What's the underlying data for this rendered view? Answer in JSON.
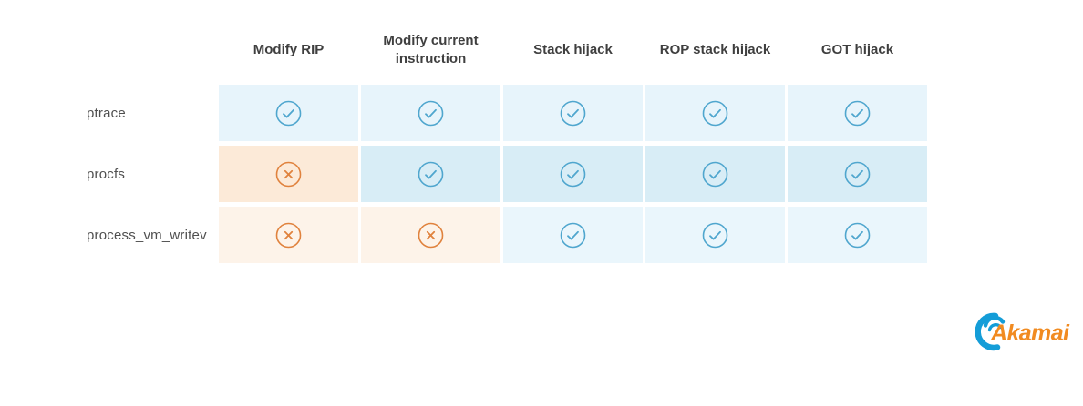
{
  "matrix": {
    "columns": [
      "Modify RIP",
      "Modify current instruction",
      "Stack hijack",
      "ROP stack hijack",
      "GOT hijack"
    ],
    "rows": [
      {
        "label": "ptrace",
        "cells": [
          "check",
          "check",
          "check",
          "check",
          "check"
        ]
      },
      {
        "label": "procfs",
        "cells": [
          "cross",
          "check",
          "check",
          "check",
          "check"
        ]
      },
      {
        "label": "process_vm_writev",
        "cells": [
          "cross",
          "cross",
          "check",
          "check",
          "check"
        ]
      }
    ]
  },
  "colors": {
    "check_icon": "#4fa6ce",
    "cross_icon": "#e0823d",
    "blue_cell_rows": [
      "#e7f4fb",
      "#d8edf6",
      "#eaf6fc"
    ],
    "orange_cell_rows": [
      "#fcead8",
      "#fcead8",
      "#fdf3e9"
    ],
    "header_text": "#3f3f3f",
    "label_text": "#4f4f4f",
    "logo_blue": "#149dd8",
    "logo_orange": "#f18b21"
  },
  "logo": {
    "text": "Akamai"
  }
}
